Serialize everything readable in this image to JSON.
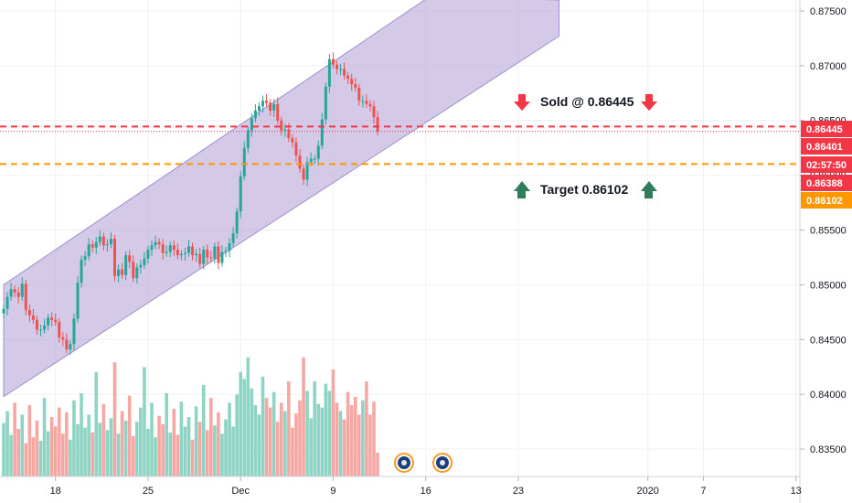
{
  "chart_data": {
    "type": "candlestick",
    "ylim": [
      0.8325,
      0.876
    ],
    "y_ticks": [
      "0.87500",
      "0.87000",
      "0.86500",
      "0.86000",
      "0.85500",
      "0.85000",
      "0.84500",
      "0.84000",
      "0.83500"
    ],
    "y_tick_values": [
      0.875,
      0.87,
      0.865,
      0.86,
      0.855,
      0.85,
      0.845,
      0.84,
      0.835
    ],
    "x_ticks": [
      "18",
      "25",
      "Dec",
      "9",
      "16",
      "23",
      "2020",
      "7",
      "13"
    ],
    "x_tick_index": [
      14,
      39,
      64,
      89,
      114,
      139,
      174,
      189,
      214
    ],
    "candle_count": 102,
    "channel": {
      "upper": [
        {
          "i": 0,
          "y": 0.85
        },
        {
          "i": 115,
          "y": 0.8763
        },
        {
          "i": 150,
          "y": 0.876
        }
      ],
      "lower": [
        {
          "i": 0,
          "y": 0.8398
        },
        {
          "i": 150,
          "y": 0.8727
        }
      ]
    },
    "price_lines": [
      {
        "name": "sold",
        "value": 0.86445,
        "label": "0.86445",
        "color": "#f23645"
      },
      {
        "name": "last",
        "value": 0.86401,
        "label": "0.86401",
        "color": "#f23645"
      },
      {
        "name": "target",
        "value": 0.86102,
        "label": "0.86102",
        "color": "#ff9800"
      }
    ],
    "price_tags": [
      {
        "label": "0.86445",
        "value": 0.86445,
        "bg": "#f23645",
        "fg": "#ffffff"
      },
      {
        "label": "0.86401",
        "value": 0.86401,
        "bg": "#f23645",
        "fg": "#ffffff"
      },
      {
        "label": "02:57:50",
        "value": 0.86275,
        "bg": "#f23645",
        "fg": "#ffffff"
      },
      {
        "label": "0.86388",
        "value": 0.8615,
        "bg": "#f23645",
        "fg": "#ffffff",
        "note": "stacked"
      },
      {
        "label": "0.86102",
        "value": 0.86,
        "bg": "#ff9800",
        "fg": "#ffffff",
        "note": "stacked"
      }
    ],
    "annotations": [
      {
        "text": "Sold @ 0.86445",
        "arrow": "down",
        "color": "#f23645"
      },
      {
        "text": "Target 0.86102",
        "arrow": "up",
        "color": "#2f7d5a"
      }
    ],
    "closes": [
      0.8478,
      0.8489,
      0.8496,
      0.8493,
      0.8489,
      0.8501,
      0.8477,
      0.8472,
      0.8468,
      0.8459,
      0.8459,
      0.8463,
      0.847,
      0.8468,
      0.8466,
      0.8452,
      0.845,
      0.8441,
      0.8446,
      0.8469,
      0.8502,
      0.8523,
      0.8526,
      0.8537,
      0.8534,
      0.8539,
      0.8544,
      0.8536,
      0.8537,
      0.8542,
      0.8508,
      0.8514,
      0.8509,
      0.8527,
      0.8521,
      0.8506,
      0.8516,
      0.8518,
      0.8524,
      0.8532,
      0.8536,
      0.8539,
      0.8537,
      0.8529,
      0.853,
      0.8536,
      0.8532,
      0.8527,
      0.8528,
      0.8529,
      0.8535,
      0.8527,
      0.8528,
      0.8519,
      0.8532,
      0.8525,
      0.8524,
      0.8535,
      0.852,
      0.853,
      0.8531,
      0.8538,
      0.8547,
      0.8567,
      0.8599,
      0.8625,
      0.8641,
      0.8652,
      0.8659,
      0.8663,
      0.8668,
      0.8666,
      0.8659,
      0.8665,
      0.865,
      0.8641,
      0.8642,
      0.8634,
      0.863,
      0.8618,
      0.8606,
      0.8596,
      0.8612,
      0.8615,
      0.8615,
      0.8627,
      0.8651,
      0.8681,
      0.8706,
      0.8701,
      0.8697,
      0.8697,
      0.8691,
      0.8688,
      0.8683,
      0.868,
      0.8668,
      0.8668,
      0.8665,
      0.8663,
      0.8653,
      0.864
    ],
    "volume_max": 1.0,
    "volumes": [
      0.45,
      0.55,
      0.35,
      0.62,
      0.4,
      0.52,
      0.28,
      0.6,
      0.33,
      0.47,
      0.3,
      0.66,
      0.38,
      0.5,
      0.42,
      0.58,
      0.36,
      0.54,
      0.31,
      0.64,
      0.44,
      0.7,
      0.41,
      0.52,
      0.37,
      0.88,
      0.45,
      0.61,
      0.39,
      0.49,
      0.96,
      0.36,
      0.55,
      0.47,
      0.68,
      0.34,
      0.46,
      0.58,
      0.92,
      0.4,
      0.62,
      0.33,
      0.51,
      0.44,
      0.7,
      0.37,
      0.57,
      0.35,
      0.63,
      0.42,
      0.5,
      0.31,
      0.59,
      0.46,
      0.77,
      0.39,
      0.66,
      0.43,
      0.54,
      0.36,
      0.48,
      0.62,
      0.42,
      0.69,
      0.88,
      0.82,
      1.0,
      0.74,
      0.6,
      0.52,
      0.84,
      0.66,
      0.58,
      0.71,
      0.46,
      0.62,
      0.55,
      0.8,
      0.41,
      0.53,
      0.64,
      1.0,
      0.72,
      0.49,
      0.8,
      0.61,
      0.58,
      0.78,
      0.72,
      0.9,
      0.62,
      0.55,
      0.48,
      0.71,
      0.6,
      0.67,
      0.52,
      0.64,
      0.8,
      0.52,
      0.63,
      0.2
    ]
  }
}
